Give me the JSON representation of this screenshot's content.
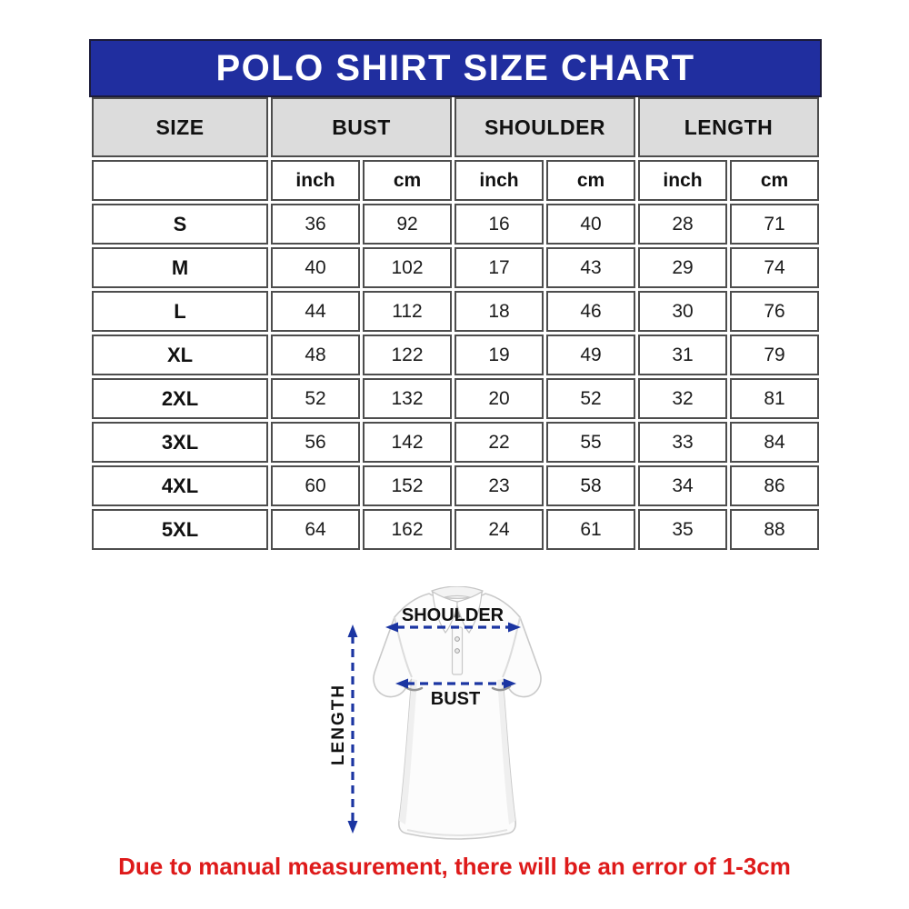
{
  "chart_data": {
    "type": "table",
    "title": "POLO SHIRT SIZE CHART",
    "column_groups": [
      "SIZE",
      "BUST",
      "SHOULDER",
      "LENGTH"
    ],
    "unit_headers": [
      "inch",
      "cm",
      "inch",
      "cm",
      "inch",
      "cm"
    ],
    "rows": [
      {
        "size": "S",
        "values": [
          36,
          92,
          16,
          40,
          28,
          71
        ]
      },
      {
        "size": "M",
        "values": [
          40,
          102,
          17,
          43,
          29,
          74
        ]
      },
      {
        "size": "L",
        "values": [
          44,
          112,
          18,
          46,
          30,
          76
        ]
      },
      {
        "size": "XL",
        "values": [
          48,
          122,
          19,
          49,
          31,
          79
        ]
      },
      {
        "size": "2XL",
        "values": [
          52,
          132,
          20,
          52,
          32,
          81
        ]
      },
      {
        "size": "3XL",
        "values": [
          56,
          142,
          22,
          55,
          33,
          84
        ]
      },
      {
        "size": "4XL",
        "values": [
          60,
          152,
          23,
          58,
          34,
          86
        ]
      },
      {
        "size": "5XL",
        "values": [
          64,
          162,
          24,
          61,
          35,
          88
        ]
      }
    ]
  },
  "diagram": {
    "shoulder_label": "SHOULDER",
    "bust_label": "BUST",
    "length_label": "LENGTH"
  },
  "footnote": "Due to manual measurement, there will be an error of 1-3cm",
  "colors": {
    "title_bar_blue": "#202e9f",
    "header_gray": "#dcdcdc",
    "border_dark": "#4d4d4d",
    "arrow_blue": "#1b35a2",
    "footnote_red": "#de1a1a"
  }
}
